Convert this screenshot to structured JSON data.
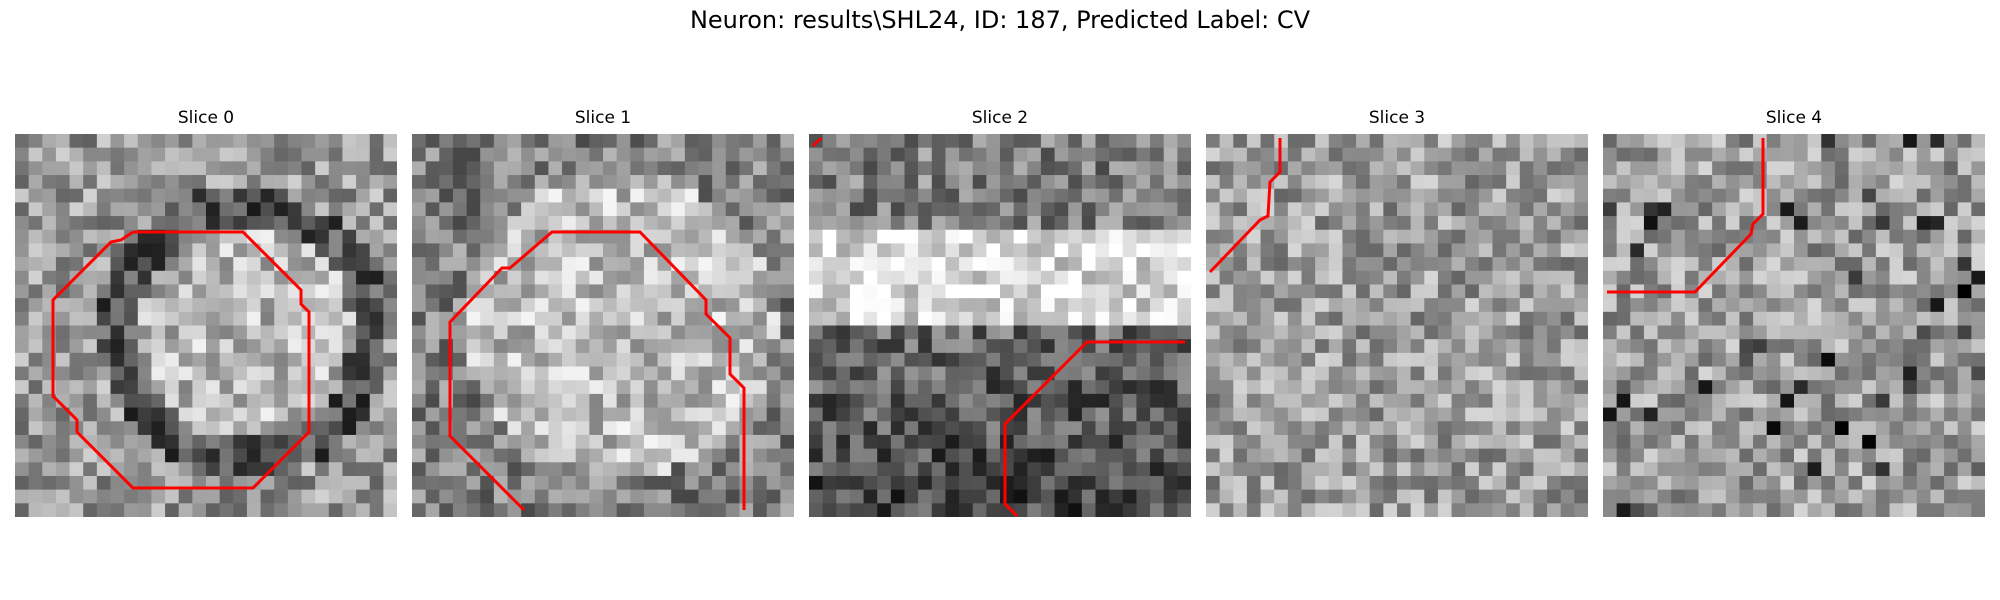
{
  "figure": {
    "suptitle": "Neuron: results\\SHL24, ID: 187, Predicted Label: CV",
    "panels": [
      {
        "title": "Slice 0",
        "seed": 11,
        "pattern": "ring"
      },
      {
        "title": "Slice 1",
        "seed": 23,
        "pattern": "blob"
      },
      {
        "title": "Slice 2",
        "seed": 37,
        "pattern": "band"
      },
      {
        "title": "Slice 3",
        "seed": 41,
        "pattern": "noise"
      },
      {
        "title": "Slice 4",
        "seed": 59,
        "pattern": "noise-dark"
      }
    ],
    "contour_color": "#ff0000",
    "colormap": "gray"
  }
}
